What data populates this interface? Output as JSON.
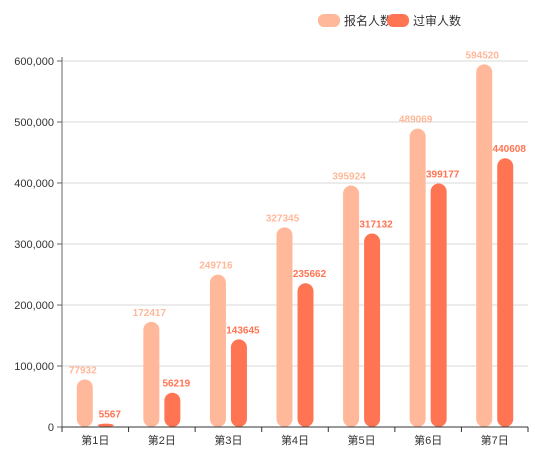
{
  "chart_data": {
    "type": "bar",
    "title": "",
    "xlabel": "",
    "ylabel": "",
    "categories": [
      "第1日",
      "第2日",
      "第3日",
      "第4日",
      "第5日",
      "第6日",
      "第7日"
    ],
    "series": [
      {
        "name": "报名人数",
        "color": "#ffb899",
        "values": [
          77932,
          172417,
          249716,
          327345,
          395924,
          489069,
          594520
        ]
      },
      {
        "name": "过审人数",
        "color": "#ff7452",
        "values": [
          5567,
          56219,
          143645,
          235662,
          317132,
          399177,
          440608
        ]
      }
    ],
    "ylim": [
      0,
      600000
    ],
    "yticks": [
      "0",
      "100,000",
      "200,000",
      "300,000",
      "400,000",
      "500,000",
      "600,000"
    ],
    "grid": true,
    "legend_position": "top-right"
  }
}
